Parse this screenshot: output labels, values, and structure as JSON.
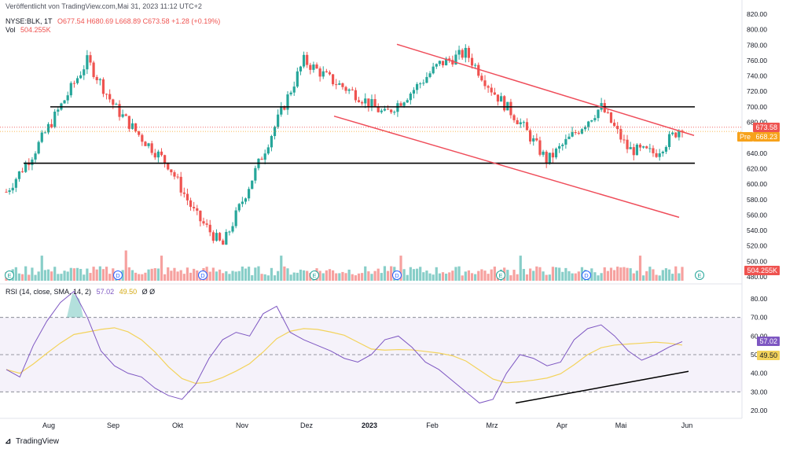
{
  "header": {
    "published": "Veröffentlicht von TradingView.com,Mai 31, 2023 11:12 UTC+2",
    "symbol": "NYSE:BLK, 1T",
    "ohlc": "O677.54  H680.69  L668.89  C673.58  +1.28 (+0.19%)",
    "vol_label": "Vol",
    "vol_value": "504.255K",
    "rsi_label": "RSI (14, close, SMA, 14, 2)",
    "rsi_value": "57.02",
    "rsi_sma_value": "49.50",
    "rsi_extra": "Ø  Ø"
  },
  "price_axis": [
    "820.00",
    "800.00",
    "780.00",
    "760.00",
    "740.00",
    "720.00",
    "700.00",
    "680.00",
    "660.00",
    "640.00",
    "620.00",
    "600.00",
    "580.00",
    "560.00",
    "540.00",
    "520.00",
    "500.00",
    "480.00"
  ],
  "rsi_axis": [
    "80.00",
    "70.00",
    "60.00",
    "50.00",
    "40.00",
    "30.00",
    "20.00"
  ],
  "badges": {
    "last_price": "673.58",
    "pre_label": "Pre",
    "pre_price": "668.23",
    "volume": "504.255K",
    "rsi": "57.02",
    "rsi_sma": "49.50"
  },
  "x_axis": [
    "Aug",
    "Sep",
    "Okt",
    "Nov",
    "Dez",
    "2023",
    "Feb",
    "Mrz",
    "Apr",
    "Mai",
    "Jun"
  ],
  "event_markers": [
    "E",
    "D",
    "D",
    "E",
    "D",
    "E",
    "D",
    "E",
    "D",
    "E",
    "D"
  ],
  "branding": "TradingView",
  "colors": {
    "up": "#26a69a",
    "down": "#ef5350",
    "rsi": "#7e57c2",
    "rsi_sma": "#f3d35c",
    "channel": "#ef4d5a",
    "levels": "#000000"
  },
  "chart_data": {
    "type": "candlestick",
    "symbol": "NYSE:BLK",
    "interval": "1D",
    "price_range": [
      480,
      820
    ],
    "horizontal_levels": [
      700,
      627
    ],
    "channel_upper": [
      {
        "month": "Jan",
        "price": 781
      },
      {
        "month": "Jun",
        "price": 663
      }
    ],
    "channel_lower": [
      {
        "month": "Dec",
        "price": 688
      },
      {
        "month": "Jun",
        "price": 557
      }
    ],
    "close_series": [
      {
        "month": "Jul",
        "close": 590
      },
      {
        "month": "Jul",
        "close": 640
      },
      {
        "month": "Aug",
        "close": 700
      },
      {
        "month": "Aug",
        "close": 760
      },
      {
        "month": "Aug",
        "close": 700
      },
      {
        "month": "Sep",
        "close": 660
      },
      {
        "month": "Sep",
        "close": 625
      },
      {
        "month": "Okt",
        "close": 560
      },
      {
        "month": "Okt",
        "close": 520
      },
      {
        "month": "Okt",
        "close": 600
      },
      {
        "month": "Nov",
        "close": 680
      },
      {
        "month": "Nov",
        "close": 760
      },
      {
        "month": "Nov",
        "close": 735
      },
      {
        "month": "Dez",
        "close": 715
      },
      {
        "month": "Dez",
        "close": 690
      },
      {
        "month": "2023",
        "close": 720
      },
      {
        "month": "2023",
        "close": 755
      },
      {
        "month": "Feb",
        "close": 770
      },
      {
        "month": "Feb",
        "close": 720
      },
      {
        "month": "Mrz",
        "close": 680
      },
      {
        "month": "Mrz",
        "close": 630
      },
      {
        "month": "Apr",
        "close": 665
      },
      {
        "month": "Apr",
        "close": 700
      },
      {
        "month": "Mai",
        "close": 645
      },
      {
        "month": "Mai",
        "close": 640
      },
      {
        "month": "Mai",
        "close": 675
      }
    ],
    "volume_range_k": [
      0,
      2500
    ],
    "rsi": {
      "period": 14,
      "range": [
        20,
        80
      ],
      "bands": [
        70,
        30
      ],
      "last": 57.02,
      "sma_last": 49.5,
      "values": [
        42,
        38,
        55,
        68,
        78,
        84,
        70,
        52,
        44,
        40,
        38,
        32,
        28,
        26,
        34,
        48,
        58,
        62,
        60,
        72,
        76,
        62,
        58,
        55,
        52,
        48,
        46,
        50,
        58,
        60,
        54,
        46,
        42,
        36,
        30,
        24,
        26,
        40,
        50,
        48,
        44,
        46,
        58,
        64,
        66,
        60,
        52,
        47,
        50,
        54,
        57
      ]
    },
    "rsi_trendline": [
      {
        "month": "Mrz",
        "rsi": 24
      },
      {
        "month": "Jun",
        "rsi": 41
      }
    ]
  }
}
